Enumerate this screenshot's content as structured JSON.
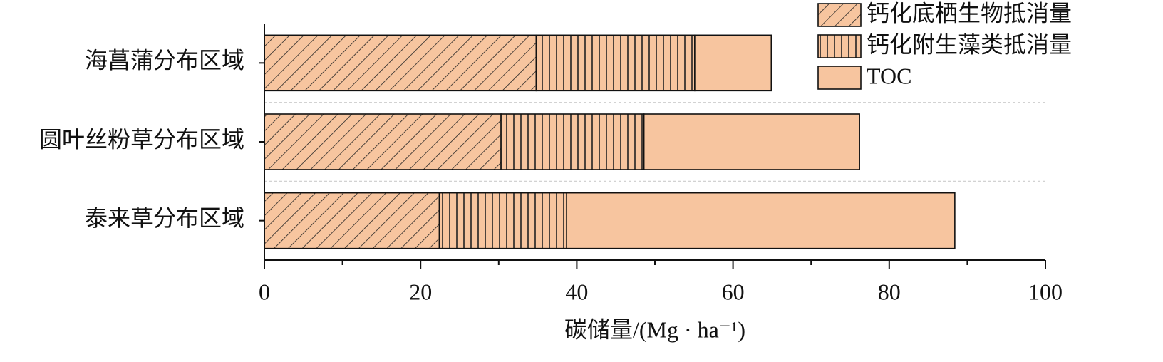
{
  "chart_data": {
    "type": "stacked_barh",
    "x_label": "碳储量/(Mg · ha⁻¹)",
    "categories": [
      "海菖蒲分布区域",
      "圆叶丝粉草分布区域",
      "泰来草分布区域"
    ],
    "series": [
      {
        "name": "钙化底栖生物抵消量",
        "color": "#f7c59f",
        "hatch": "diagonal",
        "values": [
          34.8,
          30.3,
          22.4
        ]
      },
      {
        "name": "钙化附生藻类抵消量",
        "color": "#f7c59f",
        "hatch": "vertical",
        "values": [
          20.3,
          18.3,
          16.3
        ]
      },
      {
        "name": "TOC",
        "color": "#f7c59f",
        "values": [
          9.8,
          27.6,
          49.7
        ]
      }
    ],
    "xlim": [
      0,
      100
    ],
    "xticks": [
      0,
      20,
      40,
      60,
      80,
      100
    ],
    "xminorticks": [
      10,
      30,
      50,
      70,
      90
    ]
  }
}
